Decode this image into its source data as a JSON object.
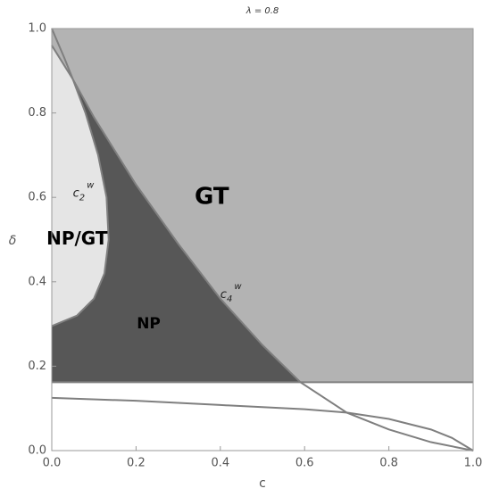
{
  "chart_data": {
    "type": "region",
    "title": "λ = 0.8",
    "x_label": "c",
    "y_label": "δ",
    "xlim": [
      0,
      1
    ],
    "ylim": [
      0,
      1
    ],
    "xticks": [
      {
        "value": 0,
        "label": "0.0"
      },
      0.2,
      0.4,
      0.6,
      0.8,
      {
        "value": 1,
        "label": "1.0"
      }
    ],
    "yticks": [
      {
        "value": 0,
        "label": "0.0"
      },
      0.2,
      0.4,
      0.6,
      0.8,
      {
        "value": 1,
        "label": "1.0"
      }
    ],
    "threshold": 0.162,
    "regions": [
      {
        "name": "GT",
        "color": "#b3b3b3"
      },
      {
        "name": "NP/GT",
        "color": "#575757"
      },
      {
        "name": "NP",
        "color": "#e5e5e5"
      }
    ],
    "series": [
      {
        "name": [
          "c",
          "4",
          "w"
        ],
        "color": "#7f7f7f",
        "x": [
          0,
          0.05,
          0.1,
          0.2,
          0.3,
          0.4,
          0.5,
          0.59,
          0.7,
          0.8,
          0.9,
          0.96,
          1.0
        ],
        "values": [
          0.96,
          0.88,
          0.79,
          0.63,
          0.49,
          0.36,
          0.25,
          0.162,
          0.09,
          0.05,
          0.02,
          0.008,
          0.0
        ]
      },
      {
        "name": [
          "c",
          "2",
          "w"
        ],
        "color": "#7f7f7f",
        "x": [
          0,
          0.03,
          0.05,
          0.08,
          0.11,
          0.13,
          0.135,
          0.125,
          0.1,
          0.06,
          0.0
        ],
        "values": [
          1.0,
          0.93,
          0.88,
          0.8,
          0.7,
          0.6,
          0.5,
          0.42,
          0.36,
          0.32,
          0.295
        ]
      },
      {
        "color": "#7f7f7f",
        "x": [
          0,
          0.2,
          0.4,
          0.6,
          0.7,
          0.8,
          0.9,
          0.95,
          1.0
        ],
        "values": [
          0.125,
          0.118,
          0.108,
          0.098,
          0.09,
          0.075,
          0.05,
          0.03,
          0.0
        ]
      }
    ]
  }
}
